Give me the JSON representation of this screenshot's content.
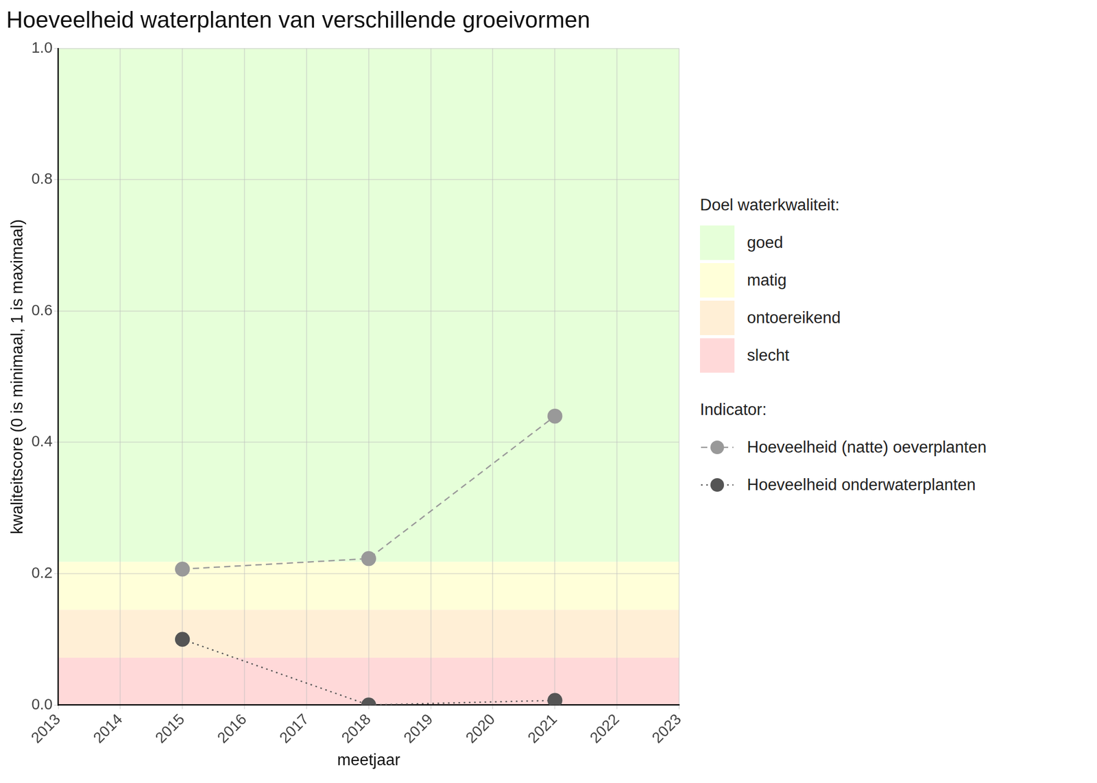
{
  "chart_data": {
    "type": "line",
    "title": "Hoeveelheid waterplanten van verschillende groeivormen",
    "x_label": "meetjaar",
    "y_label": "kwaliteitscore (0 is minimaal, 1 is maximaal)",
    "xlim": [
      2013,
      2023
    ],
    "xticks": [
      2013,
      2014,
      2015,
      2016,
      2017,
      2018,
      2019,
      2020,
      2021,
      2022,
      2023
    ],
    "ylim": [
      0,
      1
    ],
    "yticks": [
      {
        "value": 0,
        "label": "0.0"
      },
      0.2,
      0.4,
      0.6,
      0.8,
      {
        "value": 1,
        "label": "1.0"
      }
    ],
    "grid": true,
    "legend": "right",
    "bands_title": "Doel waterkwaliteit:",
    "bands": [
      {
        "name": "goed",
        "from": 0.218,
        "to": 1,
        "color": "#e6ffd9"
      },
      {
        "name": "matig",
        "from": 0.145,
        "to": 0.218,
        "color": "#ffffd9"
      },
      {
        "name": "ontoereikend",
        "from": 0.072,
        "to": 0.145,
        "color": "#ffefd6"
      },
      {
        "name": "slecht",
        "from": 0,
        "to": 0.072,
        "color": "#ffd9d9"
      }
    ],
    "series_title": "Indicator:",
    "x": [
      2015,
      2018,
      2021
    ],
    "series": [
      {
        "name": "Hoeveelheid (natte) oeverplanten",
        "color": "#999999",
        "marker": "circle",
        "line_style": "dashed",
        "values": [
          0.207,
          0.223,
          0.44
        ]
      },
      {
        "name": "Hoeveelheid onderwaterplanten",
        "color": "#555555",
        "marker": "circle",
        "line_style": "dotted",
        "values": [
          0.1,
          0.0,
          0.007
        ]
      }
    ]
  }
}
